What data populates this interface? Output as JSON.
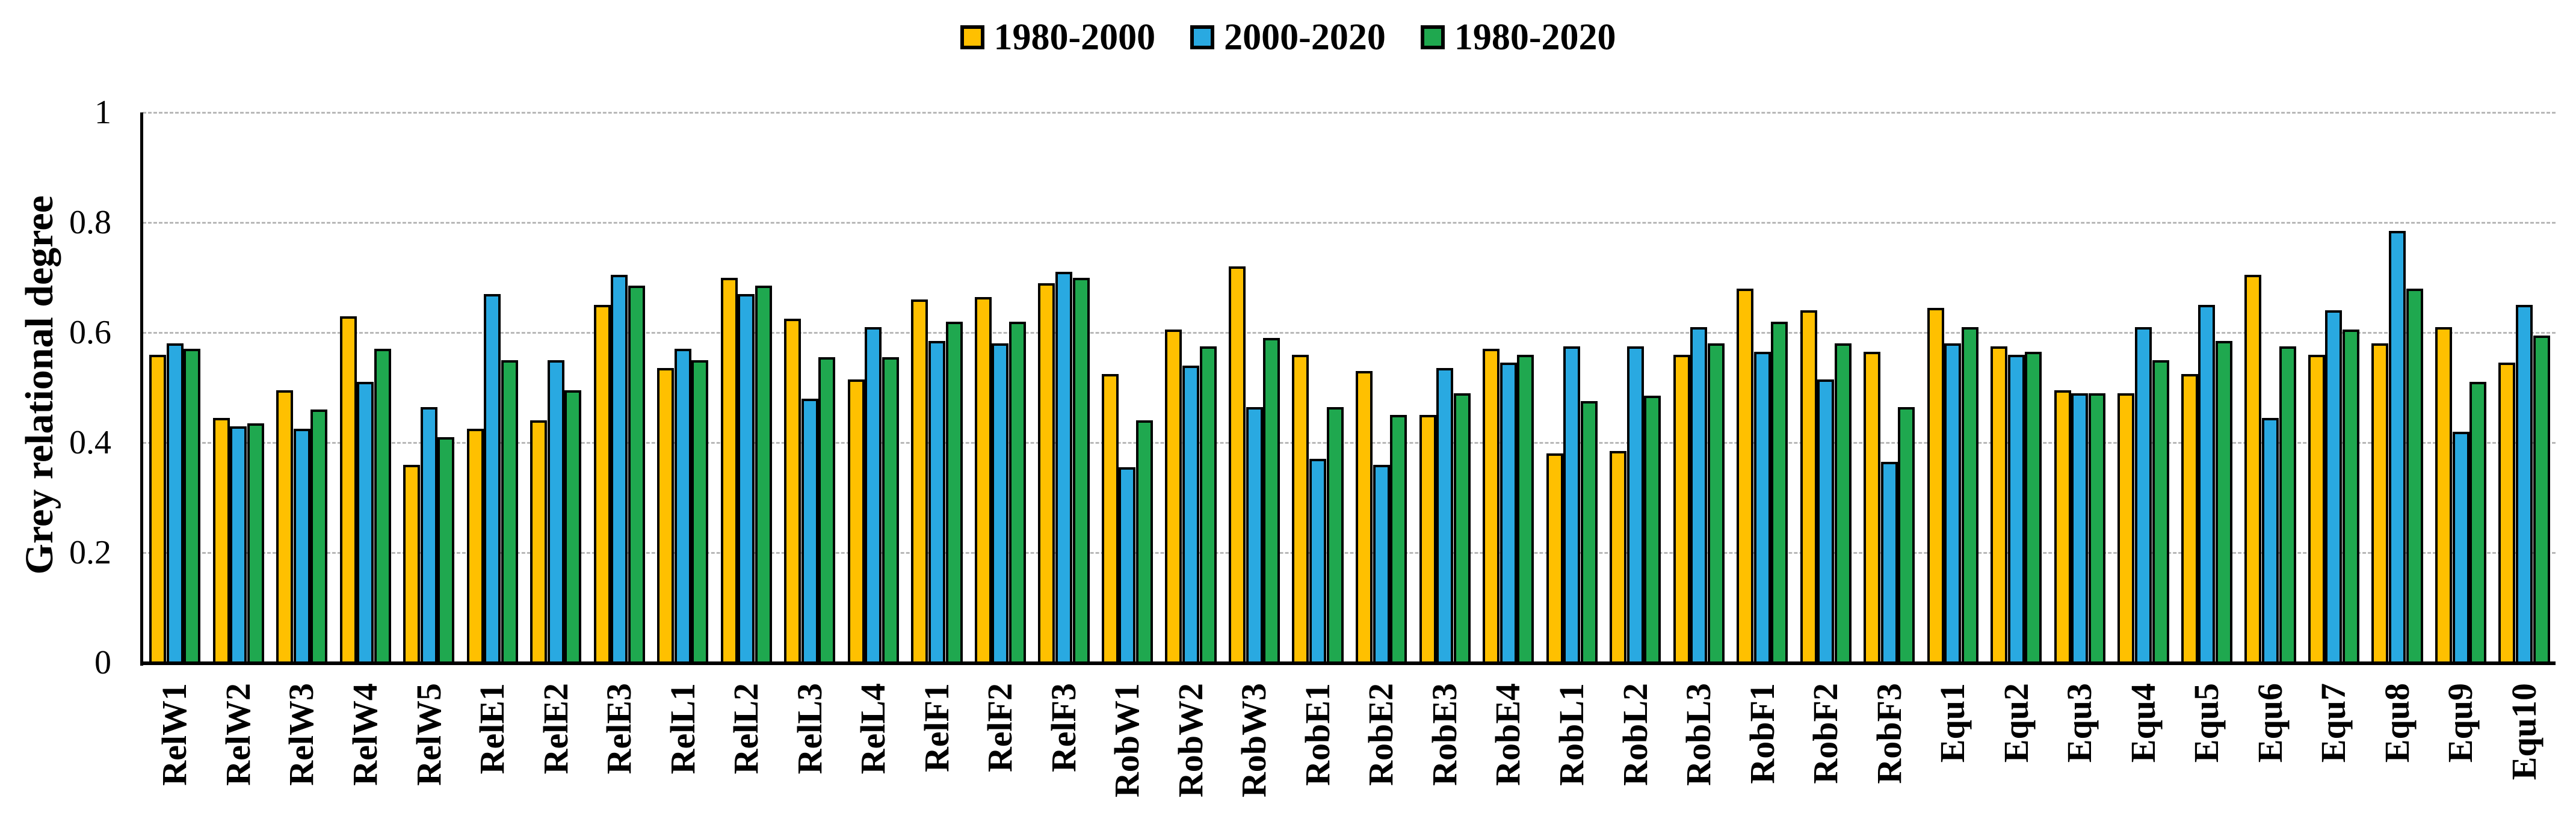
{
  "chart_data": {
    "type": "bar",
    "title": "",
    "xlabel": "",
    "ylabel": "Grey relational degree",
    "ylim": [
      0,
      1
    ],
    "ytick_labels": [
      "1",
      "0.8",
      "0.6",
      "0.4",
      "0.2",
      "0"
    ],
    "ytick_values": [
      1,
      0.8,
      0.6,
      0.4,
      0.2,
      0
    ],
    "grid": "horizontal dashed gridlines at 0.2 intervals",
    "legend_position": "top-center",
    "background_color": "#ffffff",
    "bar_border_color": "#000000",
    "gridline_color": "#b8b8b8",
    "categories": [
      "RelW1",
      "RelW2",
      "RelW3",
      "RelW4",
      "RelW5",
      "RelE1",
      "RelE2",
      "RelE3",
      "RelL1",
      "RelL2",
      "RelL3",
      "RelL4",
      "RelF1",
      "RelF2",
      "RelF3",
      "RobW1",
      "RobW2",
      "RobW3",
      "RobE1",
      "RobE2",
      "RobE3",
      "RobE4",
      "RobL1",
      "RobL2",
      "RobL3",
      "RobF1",
      "RobF2",
      "RobF3",
      "Equ1",
      "Equ2",
      "Equ3",
      "Equ4",
      "Equ5",
      "Equ6",
      "Equ7",
      "Equ8",
      "Equ9",
      "Equ10"
    ],
    "series": [
      {
        "name": "1980-2000",
        "color": "#FFC000",
        "values": [
          0.56,
          0.445,
          0.495,
          0.63,
          0.36,
          0.425,
          0.44,
          0.65,
          0.535,
          0.7,
          0.625,
          0.515,
          0.66,
          0.665,
          0.69,
          0.525,
          0.605,
          0.72,
          0.56,
          0.53,
          0.45,
          0.57,
          0.38,
          0.385,
          0.56,
          0.68,
          0.64,
          0.565,
          0.645,
          0.575,
          0.495,
          0.49,
          0.525,
          0.705,
          0.56,
          0.58,
          0.61,
          0.545
        ]
      },
      {
        "name": "2000-2020",
        "color": "#29A9E1",
        "values": [
          0.58,
          0.43,
          0.425,
          0.51,
          0.465,
          0.67,
          0.55,
          0.705,
          0.57,
          0.67,
          0.48,
          0.61,
          0.585,
          0.58,
          0.71,
          0.355,
          0.54,
          0.465,
          0.37,
          0.36,
          0.535,
          0.545,
          0.575,
          0.575,
          0.61,
          0.565,
          0.515,
          0.365,
          0.58,
          0.56,
          0.49,
          0.61,
          0.65,
          0.445,
          0.64,
          0.785,
          0.42,
          0.65
        ]
      },
      {
        "name": "1980-2020",
        "color": "#1FA84F",
        "values": [
          0.57,
          0.435,
          0.46,
          0.57,
          0.41,
          0.55,
          0.495,
          0.685,
          0.55,
          0.685,
          0.555,
          0.555,
          0.62,
          0.62,
          0.7,
          0.44,
          0.575,
          0.59,
          0.465,
          0.45,
          0.49,
          0.56,
          0.475,
          0.485,
          0.58,
          0.62,
          0.58,
          0.465,
          0.61,
          0.565,
          0.49,
          0.55,
          0.585,
          0.575,
          0.605,
          0.68,
          0.51,
          0.595
        ]
      }
    ]
  }
}
